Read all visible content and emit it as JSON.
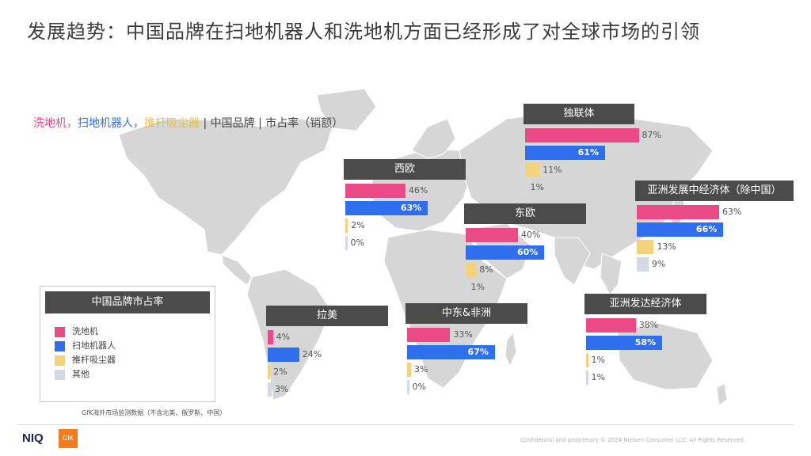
{
  "title": "发展趋势：中国品牌在扫地机器人和洗地机方面已经形成了对全球市场的引领",
  "subtitle": {
    "series1": "洗地机，",
    "series2": "扫地机器人，",
    "series3": "推杆吸尘器",
    "rest": " | 中国品牌 | 市占率（销额）"
  },
  "colors": {
    "洗地机": "#ea4a86",
    "扫地机器人": "#2f6fed",
    "推杆吸尘器": "#f4d27d",
    "其他": "#d3d8e3",
    "header": "#4b4b4b"
  },
  "legend": {
    "title": "中国品牌市占率",
    "items": [
      "洗地机",
      "扫地机器人",
      "推杆吸尘器",
      "其他"
    ]
  },
  "chart_data": {
    "type": "bar",
    "series_names": [
      "洗地机",
      "扫地机器人",
      "推杆吸尘器",
      "其他"
    ],
    "regions": [
      {
        "name": "独联体",
        "labels": [
          "87%",
          "61%",
          "11%",
          "1%"
        ],
        "values": [
          87,
          61,
          11,
          1
        ]
      },
      {
        "name": "西欧",
        "labels": [
          "46%",
          "63%",
          "2%",
          "0%"
        ],
        "values": [
          46,
          63,
          2,
          0
        ]
      },
      {
        "name": "亚洲发展中经济体（除中国）",
        "labels": [
          "63%",
          "66%",
          "13%",
          "9%"
        ],
        "values": [
          63,
          66,
          13,
          9
        ]
      },
      {
        "name": "东欧",
        "labels": [
          "40%",
          "60%",
          "8%",
          "1%"
        ],
        "values": [
          40,
          60,
          8,
          1
        ]
      },
      {
        "name": "拉美",
        "labels": [
          "4%",
          "24%",
          "2%",
          "3%"
        ],
        "values": [
          4,
          24,
          2,
          3
        ]
      },
      {
        "name": "中东&非洲",
        "labels": [
          "33%",
          "67%",
          "3%",
          "0%"
        ],
        "values": [
          33,
          67,
          3,
          0
        ]
      },
      {
        "name": "亚洲发达经济体",
        "labels": [
          "38%",
          "58%",
          "1%",
          "1%"
        ],
        "values": [
          38,
          58,
          1,
          1
        ]
      }
    ]
  },
  "source": "GfK海外市场监测数据（不含北美、俄罗斯、中国）",
  "footer": {
    "niq": "NIQ",
    "gfk": "GfK",
    "text": "Confidential and proprietary     © 2024 Nielsen Consumer LLC. All Rights Reserved."
  }
}
